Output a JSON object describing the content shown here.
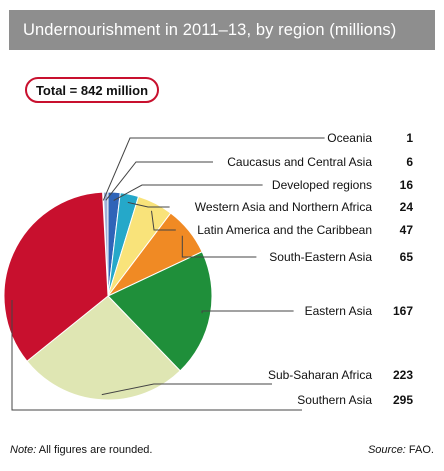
{
  "title": "Undernourishment in 2011–13, by region (millions)",
  "total_label": "Total = 842 million",
  "footer": {
    "note_prefix": "Note:",
    "note_text": " All figures are rounded.",
    "source_prefix": "Source:",
    "source_text": " FAO."
  },
  "chart_data": {
    "type": "pie",
    "title": "Undernourishment in 2011–13, by region (millions)",
    "total": 842,
    "unit": "millions",
    "slices": [
      {
        "label": "Oceania",
        "value": 1,
        "color": "#c9d3e8"
      },
      {
        "label": "Caucasus and Central Asia",
        "value": 6,
        "color": "#9fb1d8"
      },
      {
        "label": "Developed regions",
        "value": 16,
        "color": "#2f64b8"
      },
      {
        "label": "Western Asia and Northern Africa",
        "value": 24,
        "color": "#25a8c9"
      },
      {
        "label": "Latin America and the Caribbean",
        "value": 47,
        "color": "#f9e37a"
      },
      {
        "label": "South-Eastern Asia",
        "value": 65,
        "color": "#f08a24"
      },
      {
        "label": "Eastern Asia",
        "value": 167,
        "color": "#1f8f3a"
      },
      {
        "label": "Sub-Saharan Africa",
        "value": 223,
        "color": "#dfe6b3"
      },
      {
        "label": "Southern Asia",
        "value": 295,
        "color": "#c8102e"
      }
    ]
  }
}
